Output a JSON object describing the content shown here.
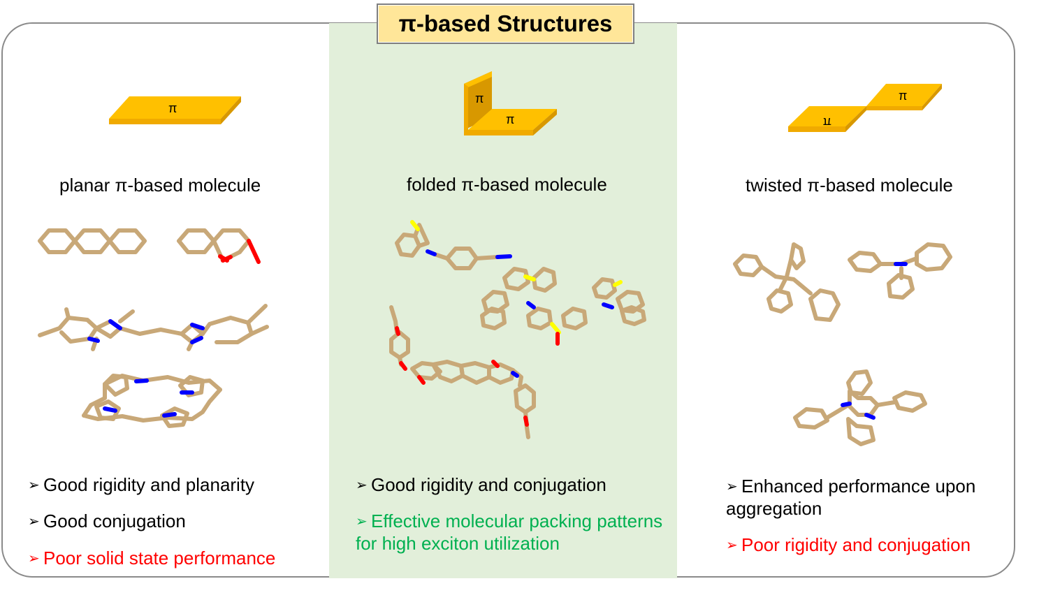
{
  "title": "π-based Structures",
  "pi_symbol": "π",
  "columns": [
    {
      "caption": "planar π-based molecule",
      "bullets": [
        {
          "text": "Good rigidity and planarity",
          "color": "#000000"
        },
        {
          "text": "Good conjugation",
          "color": "#000000"
        },
        {
          "text": "Poor solid state performance",
          "color": "#ff0000"
        }
      ]
    },
    {
      "caption": "folded π-based molecule",
      "bullets": [
        {
          "text": "Good rigidity and conjugation",
          "color": "#000000"
        },
        {
          "text": "Effective molecular packing patterns for high exciton utilization",
          "color": "#00b050"
        }
      ]
    },
    {
      "caption": "twisted π-based molecule",
      "bullets": [
        {
          "text": "Enhanced performance upon aggregation",
          "color": "#000000"
        },
        {
          "text": "Poor rigidity and conjugation",
          "color": "#ff0000"
        }
      ]
    }
  ],
  "colors": {
    "slab_top": "#ffc000",
    "slab_side": "#e5a100",
    "bond_tan": "#c8a878",
    "nitrogen": "#0000ff",
    "oxygen": "#ff0000",
    "sulfur": "#ffff00",
    "middle_band": "#e2efda",
    "title_fill": "#ffe699"
  }
}
